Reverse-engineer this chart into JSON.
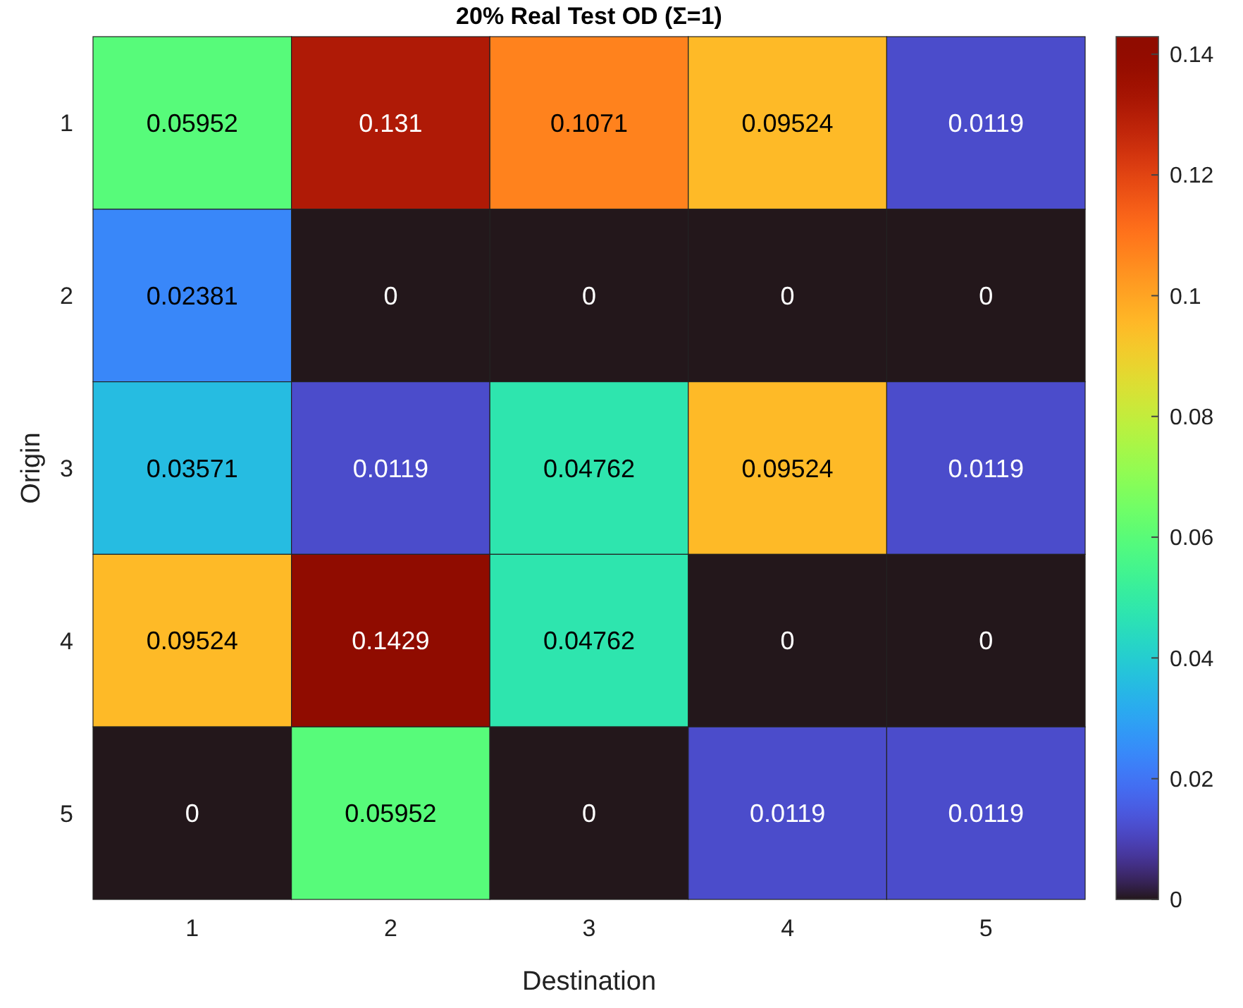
{
  "chart_data": {
    "type": "heatmap",
    "title": "20% Real Test OD (Σ=1)",
    "xlabel": "Destination",
    "ylabel": "Origin",
    "categories": [
      "1",
      "2",
      "3",
      "4",
      "5"
    ],
    "y_categories": [
      "1",
      "2",
      "3",
      "4",
      "5"
    ],
    "cells": [
      [
        0.05952,
        0.131,
        0.1071,
        0.09524,
        0.0119
      ],
      [
        0.02381,
        0,
        0,
        0,
        0
      ],
      [
        0.03571,
        0.0119,
        0.04762,
        0.09524,
        0.0119
      ],
      [
        0.09524,
        0.1429,
        0.04762,
        0,
        0
      ],
      [
        0,
        0.05952,
        0,
        0.0119,
        0.0119
      ]
    ],
    "data_labels": true,
    "clim": [
      0,
      0.1429
    ],
    "cticks": [
      0,
      0.02,
      0.04,
      0.06,
      0.08,
      0.1,
      0.12,
      0.14
    ]
  }
}
